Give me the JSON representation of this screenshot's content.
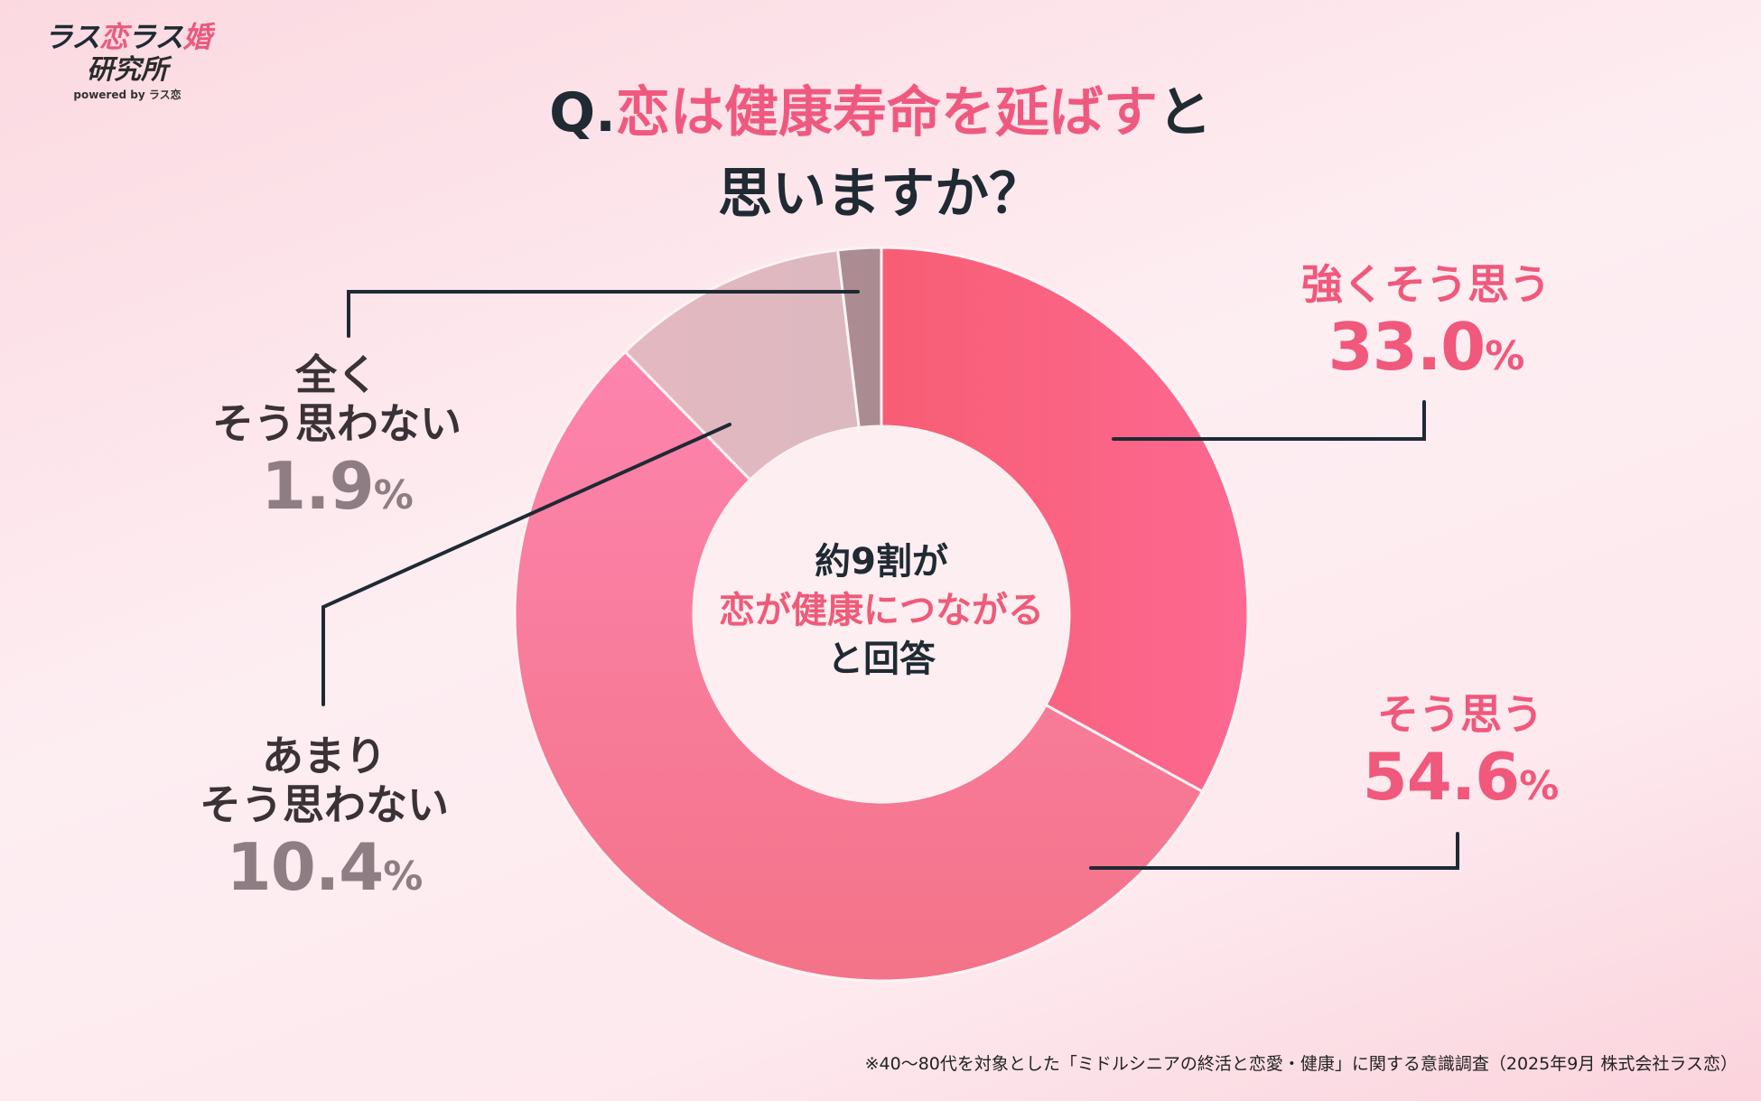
{
  "logo": {
    "part1": "ラス",
    "part2": "恋",
    "part3": "ラス",
    "part4": "婚",
    "line2": "研究所",
    "powered": "powered by ラス恋"
  },
  "title": {
    "prefix": "Q.",
    "highlight": "恋は健康寿命を延ばす",
    "rest": "と",
    "line2": "思いますか？"
  },
  "center": {
    "line1": "約9割が",
    "line2": "恋が健康につながる",
    "line3": "と回答"
  },
  "footnote": "※40〜80代を対象とした「ミドルシニアの終活と恋愛・健康」に関する意識調査（2025年9月 株式会社ラス恋）",
  "chart_data": {
    "type": "pie",
    "donut": true,
    "start": "top",
    "direction": "clockwise",
    "unit": "%",
    "slices": [
      {
        "label": "強くそう思う",
        "value": 33.0,
        "color": "#f8637e",
        "text_color": "#f0587c"
      },
      {
        "label": "そう思う",
        "value": 54.6,
        "color": "#f97fa4",
        "text_color": "#f0587c"
      },
      {
        "label": "あまりそう思わない",
        "label_lines": [
          "あまり",
          "そう思わない"
        ],
        "value": 10.4,
        "color": "#e1b6bf",
        "text_color": "#8e7e84"
      },
      {
        "label": "全くそう思わない",
        "label_lines": [
          "全く",
          "そう思わない"
        ],
        "value": 1.9,
        "color": "#ad8c93",
        "text_color": "#8e7e84"
      }
    ]
  }
}
